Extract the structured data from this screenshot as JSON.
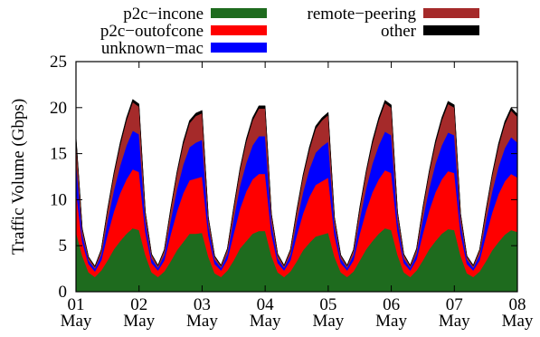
{
  "chart_data": {
    "type": "area",
    "stacked": true,
    "title": "",
    "xlabel": "",
    "ylabel": "Traffic Volume (Gbps)",
    "ylim": [
      0,
      25
    ],
    "yticks": [
      0,
      5,
      10,
      15,
      20,
      25
    ],
    "xlim_days": [
      0,
      7
    ],
    "xtick_labels": [
      {
        "day": "01",
        "month": "May"
      },
      {
        "day": "02",
        "month": "May"
      },
      {
        "day": "03",
        "month": "May"
      },
      {
        "day": "04",
        "month": "May"
      },
      {
        "day": "05",
        "month": "May"
      },
      {
        "day": "06",
        "month": "May"
      },
      {
        "day": "07",
        "month": "May"
      },
      {
        "day": "08",
        "month": "May"
      }
    ],
    "grid": false,
    "legend_position": "top, outside plot, two columns",
    "x": [
      0.0,
      0.1,
      0.2,
      0.3,
      0.4,
      0.5,
      0.6,
      0.7,
      0.8,
      0.9,
      1.0,
      1.1,
      1.2,
      1.3,
      1.4,
      1.5,
      1.6,
      1.7,
      1.8,
      1.9,
      2.0,
      2.1,
      2.2,
      2.3,
      2.4,
      2.5,
      2.6,
      2.7,
      2.8,
      2.9,
      3.0,
      3.1,
      3.2,
      3.3,
      3.4,
      3.5,
      3.6,
      3.7,
      3.8,
      3.9,
      4.0,
      4.1,
      4.2,
      4.3,
      4.4,
      4.5,
      4.6,
      4.7,
      4.8,
      4.9,
      5.0,
      5.1,
      5.2,
      5.3,
      5.4,
      5.5,
      5.6,
      5.7,
      5.8,
      5.9,
      6.0,
      6.1,
      6.2,
      6.3,
      6.4,
      6.5,
      6.6,
      6.7,
      6.8,
      6.9,
      7.0
    ],
    "series": [
      {
        "name": "p2c−incone",
        "color": "#1e6b1e",
        "values": [
          6.5,
          3.9,
          2.1,
          1.6,
          2.3,
          3.4,
          4.6,
          5.5,
          6.3,
          6.9,
          6.7,
          4.0,
          2.1,
          1.6,
          2.2,
          3.3,
          4.5,
          5.4,
          6.3,
          6.3,
          6.4,
          3.8,
          2.0,
          1.6,
          2.3,
          3.4,
          4.7,
          5.5,
          6.3,
          6.6,
          6.6,
          3.9,
          2.1,
          1.6,
          2.2,
          3.3,
          4.5,
          5.3,
          6.0,
          6.2,
          6.4,
          3.8,
          2.1,
          1.6,
          2.2,
          3.4,
          4.6,
          5.5,
          6.3,
          6.9,
          6.7,
          4.0,
          2.1,
          1.6,
          2.3,
          3.4,
          4.6,
          5.5,
          6.3,
          6.8,
          6.7,
          3.9,
          2.0,
          1.6,
          2.2,
          3.3,
          4.5,
          5.4,
          6.2,
          6.7,
          6.5
        ]
      },
      {
        "name": "p2c−outofcone",
        "color": "#ff0000",
        "values": [
          4.5,
          1.5,
          0.9,
          0.6,
          1.1,
          2.8,
          4.1,
          5.2,
          5.9,
          6.4,
          6.3,
          2.5,
          1.0,
          0.7,
          1.2,
          2.9,
          4.2,
          5.3,
          5.8,
          6.0,
          6.1,
          2.3,
          1.0,
          0.7,
          1.2,
          2.9,
          4.3,
          5.4,
          5.9,
          6.2,
          6.2,
          2.4,
          1.0,
          0.7,
          1.2,
          2.8,
          4.0,
          5.0,
          5.6,
          5.8,
          6.0,
          2.3,
          1.0,
          0.7,
          1.2,
          2.9,
          4.2,
          5.3,
          5.9,
          6.3,
          6.2,
          2.5,
          1.0,
          0.7,
          1.2,
          2.9,
          4.2,
          5.3,
          5.9,
          6.3,
          6.2,
          2.4,
          1.0,
          0.7,
          1.2,
          2.8,
          4.1,
          5.2,
          5.8,
          6.1,
          5.9
        ]
      },
      {
        "name": "unknown−mac",
        "color": "#0000ff",
        "values": [
          3.3,
          0.8,
          0.4,
          0.3,
          0.6,
          1.5,
          2.3,
          3.0,
          3.7,
          4.2,
          4.1,
          1.2,
          0.5,
          0.3,
          0.6,
          1.5,
          2.4,
          3.1,
          3.6,
          3.9,
          4.0,
          1.1,
          0.5,
          0.3,
          0.6,
          1.6,
          2.5,
          3.1,
          3.7,
          4.1,
          4.1,
          1.2,
          0.5,
          0.3,
          0.6,
          1.5,
          2.3,
          3.0,
          3.5,
          3.8,
          3.9,
          1.1,
          0.5,
          0.3,
          0.6,
          1.6,
          2.4,
          3.1,
          3.7,
          4.2,
          4.1,
          1.2,
          0.5,
          0.3,
          0.6,
          1.6,
          2.4,
          3.1,
          3.7,
          4.2,
          4.1,
          1.2,
          0.5,
          0.3,
          0.6,
          1.5,
          2.3,
          3.0,
          3.6,
          4.0,
          3.8
        ]
      },
      {
        "name": "remote−peering",
        "color": "#a52a2a",
        "values": [
          2.4,
          0.6,
          0.3,
          0.2,
          0.5,
          1.1,
          1.7,
          2.2,
          2.7,
          3.1,
          3.0,
          0.9,
          0.4,
          0.2,
          0.5,
          1.1,
          1.7,
          2.2,
          2.6,
          2.9,
          2.9,
          0.8,
          0.3,
          0.2,
          0.5,
          1.1,
          1.7,
          2.3,
          2.7,
          3.0,
          3.0,
          0.9,
          0.4,
          0.2,
          0.5,
          1.1,
          1.7,
          2.1,
          2.6,
          2.8,
          2.9,
          0.8,
          0.3,
          0.2,
          0.5,
          1.1,
          1.7,
          2.2,
          2.7,
          3.1,
          3.0,
          0.9,
          0.4,
          0.2,
          0.5,
          1.1,
          1.7,
          2.2,
          2.7,
          3.1,
          3.0,
          0.9,
          0.3,
          0.2,
          0.5,
          1.1,
          1.7,
          2.2,
          2.6,
          2.9,
          2.8
        ]
      },
      {
        "name": "other",
        "color": "#000000",
        "values": [
          0.3,
          0.1,
          0.1,
          0.1,
          0.1,
          0.2,
          0.2,
          0.3,
          0.3,
          0.3,
          0.3,
          0.1,
          0.1,
          0.1,
          0.1,
          0.2,
          0.2,
          0.3,
          0.3,
          0.3,
          0.3,
          0.1,
          0.1,
          0.1,
          0.1,
          0.2,
          0.2,
          0.3,
          0.3,
          0.3,
          0.3,
          0.1,
          0.1,
          0.1,
          0.1,
          0.2,
          0.2,
          0.3,
          0.3,
          0.3,
          0.3,
          0.1,
          0.1,
          0.1,
          0.1,
          0.2,
          0.2,
          0.3,
          0.3,
          0.3,
          0.3,
          0.1,
          0.1,
          0.1,
          0.1,
          0.2,
          0.2,
          0.3,
          0.3,
          0.3,
          0.3,
          0.1,
          0.1,
          0.1,
          0.1,
          0.2,
          0.2,
          0.3,
          0.3,
          0.3,
          0.3
        ]
      }
    ]
  }
}
